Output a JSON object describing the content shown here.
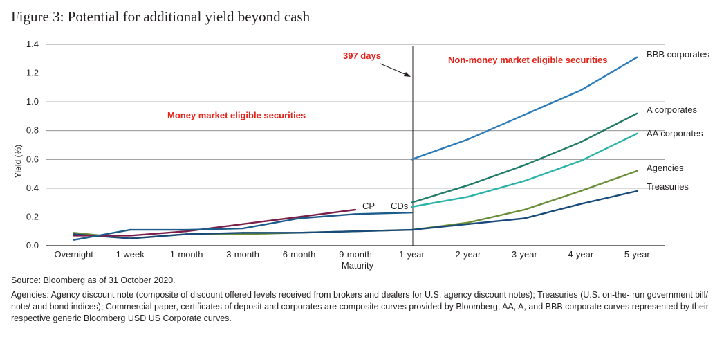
{
  "figure": {
    "title": "Figure 3: Potential for additional yield beyond cash",
    "source": "Source: Bloomberg as of 31 October 2020.",
    "footnote": "Agencies: Agency discount note (composite of discount offered levels received from brokers and dealers for U.S. agency discount notes); Treasuries (U.S. on-the- run government bill/ note/ and bond indices); Commercial paper, certificates of deposit and corporates are composite curves provided by Bloomberg; AA, A, and BBB corporate curves represented by their respective generic Bloomberg USD US Corporate curves."
  },
  "chart_data": {
    "type": "line",
    "ylabel": "Yield (%)",
    "xlabel": "Maturity",
    "ylim": [
      0,
      1.4
    ],
    "yticks": [
      "0.0",
      "0.2",
      "0.4",
      "0.6",
      "0.8",
      "1.0",
      "1.2",
      "1.4"
    ],
    "categories": [
      "Overnight",
      "1 week",
      "1-month",
      "3-month",
      "6-month",
      "9-month",
      "1-year",
      "2-year",
      "3-year",
      "4-year",
      "5-year"
    ],
    "grid": "horizontal",
    "divider": {
      "at": "1-year",
      "label": "397 days"
    },
    "annotations": [
      "Money market eligible securities",
      "Non-money market eligible securities"
    ],
    "series": [
      {
        "name": "BBB corporates",
        "color": "#2b7bb9",
        "values": [
          null,
          null,
          null,
          null,
          null,
          null,
          0.6,
          0.74,
          0.91,
          1.08,
          1.31
        ]
      },
      {
        "name": "A corporates",
        "color": "#1f7a68",
        "values": [
          null,
          null,
          null,
          null,
          null,
          null,
          0.3,
          0.42,
          0.56,
          0.72,
          0.92
        ]
      },
      {
        "name": "AA corporates",
        "color": "#2bb3a8",
        "values": [
          null,
          null,
          null,
          null,
          null,
          null,
          0.27,
          0.34,
          0.45,
          0.59,
          0.78
        ]
      },
      {
        "name": "Agencies",
        "color": "#6b8e3a",
        "values": [
          0.09,
          0.05,
          0.08,
          0.08,
          0.09,
          0.1,
          0.11,
          0.16,
          0.25,
          0.38,
          0.52
        ]
      },
      {
        "name": "Treasuries",
        "color": "#184a7a",
        "values": [
          0.08,
          0.05,
          0.08,
          0.09,
          0.09,
          0.1,
          0.11,
          0.15,
          0.19,
          0.29,
          0.38
        ]
      },
      {
        "name": "CP",
        "color": "#7a1f4a",
        "values": [
          0.07,
          0.07,
          0.1,
          0.15,
          0.2,
          0.25,
          null,
          null,
          null,
          null,
          null
        ]
      },
      {
        "name": "CDs",
        "color": "#1c5c8c",
        "values": [
          0.04,
          0.11,
          0.11,
          0.12,
          0.19,
          0.22,
          0.23,
          null,
          null,
          null,
          null
        ]
      }
    ]
  }
}
